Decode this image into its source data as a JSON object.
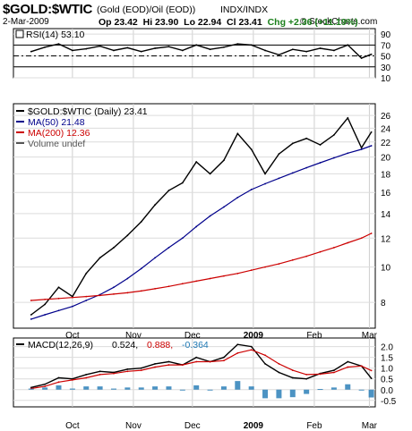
{
  "header": {
    "symbol": "$GOLD:$WTIC",
    "description": "(Gold (EOD)/Oil (EOD))",
    "exchange": "INDX/INDX",
    "watermark": "© StockCharts.com",
    "date": "2-Mar-2009",
    "open": "Op 23.42",
    "high": "Hi 23.90",
    "low": "Lo 22.94",
    "close": "Cl 23.41",
    "change": "Chg +2.36 (+11.19%)",
    "change_color": "#1a7f1a"
  },
  "chart_data": [
    {
      "type": "line",
      "panel": "rsi",
      "legend": [
        "RSI(14) 53.10"
      ],
      "ylim": [
        10,
        100
      ],
      "yticks": [
        10,
        30,
        50,
        70,
        90
      ],
      "reference_lines": [
        30,
        50,
        70
      ],
      "x": [
        "2008-09-10",
        "2008-09-17",
        "2008-09-24",
        "2008-10-01",
        "2008-10-08",
        "2008-10-15",
        "2008-10-22",
        "2008-10-29",
        "2008-11-05",
        "2008-11-12",
        "2008-11-19",
        "2008-11-26",
        "2008-12-03",
        "2008-12-10",
        "2008-12-17",
        "2008-12-24",
        "2008-12-31",
        "2009-01-07",
        "2009-01-14",
        "2009-01-21",
        "2009-01-28",
        "2009-02-04",
        "2009-02-11",
        "2009-02-18",
        "2009-02-25",
        "2009-03-02"
      ],
      "series": [
        {
          "name": "RSI(14) 53.10",
          "color": "#000000",
          "values": [
            58,
            66,
            72,
            60,
            63,
            68,
            60,
            65,
            58,
            64,
            67,
            60,
            70,
            62,
            66,
            72,
            70,
            60,
            52,
            62,
            58,
            64,
            60,
            70,
            46,
            53
          ]
        }
      ]
    },
    {
      "type": "line",
      "panel": "price",
      "scale": "log",
      "legend": [
        "$GOLD:$WTIC (Daily) 23.41",
        "MA(50) 21.48",
        "MA(200) 12.36",
        "Volume undef"
      ],
      "ylim": [
        6.8,
        28
      ],
      "yticks": [
        8,
        10,
        12,
        14,
        16,
        18,
        20,
        22,
        24,
        26
      ],
      "x": [
        "2008-09-10",
        "2008-09-17",
        "2008-09-24",
        "2008-10-01",
        "2008-10-08",
        "2008-10-15",
        "2008-10-22",
        "2008-10-29",
        "2008-11-05",
        "2008-11-12",
        "2008-11-19",
        "2008-11-26",
        "2008-12-03",
        "2008-12-10",
        "2008-12-17",
        "2008-12-24",
        "2008-12-31",
        "2009-01-07",
        "2009-01-14",
        "2009-01-21",
        "2009-01-28",
        "2009-02-04",
        "2009-02-11",
        "2009-02-18",
        "2009-02-25",
        "2009-03-02"
      ],
      "series": [
        {
          "name": "$GOLD:$WTIC (Daily) 23.41",
          "color": "#000000",
          "values": [
            7.4,
            7.9,
            8.8,
            8.3,
            9.6,
            10.6,
            11.3,
            12.2,
            13.3,
            14.8,
            16.2,
            17.0,
            19.4,
            18.0,
            19.6,
            23.2,
            21.0,
            18.0,
            20.4,
            21.8,
            22.5,
            21.6,
            23.0,
            25.6,
            21.2,
            23.41
          ]
        },
        {
          "name": "MA(50) 21.48",
          "color": "#00008b",
          "values": [
            7.2,
            7.4,
            7.6,
            7.8,
            8.1,
            8.4,
            8.8,
            9.3,
            9.9,
            10.6,
            11.3,
            12.0,
            12.9,
            13.8,
            14.6,
            15.5,
            16.3,
            16.9,
            17.5,
            18.1,
            18.7,
            19.3,
            19.9,
            20.5,
            21.0,
            21.48
          ]
        },
        {
          "name": "MA(200) 12.36",
          "color": "#cc0000",
          "values": [
            8.1,
            8.15,
            8.2,
            8.25,
            8.3,
            8.36,
            8.43,
            8.5,
            8.6,
            8.72,
            8.85,
            9.0,
            9.15,
            9.3,
            9.45,
            9.6,
            9.8,
            10.0,
            10.2,
            10.45,
            10.7,
            11.0,
            11.3,
            11.65,
            12.0,
            12.36
          ]
        }
      ]
    },
    {
      "type": "line",
      "panel": "macd",
      "legend": [
        "MACD(12,26,9)",
        "0.524,",
        "0.888,",
        "-0.364"
      ],
      "legend_colors": [
        "#000000",
        "#000000",
        "#cc0000",
        "#1f78b4"
      ],
      "ylim": [
        -0.8,
        2.4
      ],
      "yticks": [
        -0.5,
        0.0,
        0.5,
        1.0,
        1.5,
        2.0
      ],
      "x": [
        "2008-09-10",
        "2008-09-17",
        "2008-09-24",
        "2008-10-01",
        "2008-10-08",
        "2008-10-15",
        "2008-10-22",
        "2008-10-29",
        "2008-11-05",
        "2008-11-12",
        "2008-11-19",
        "2008-11-26",
        "2008-12-03",
        "2008-12-10",
        "2008-12-17",
        "2008-12-24",
        "2008-12-31",
        "2009-01-07",
        "2009-01-14",
        "2009-01-21",
        "2009-01-28",
        "2009-02-04",
        "2009-02-11",
        "2009-02-18",
        "2009-02-25",
        "2009-03-02"
      ],
      "series": [
        {
          "name": "MACD(12,26,9) 0.524",
          "color": "#000000",
          "values": [
            0.1,
            0.25,
            0.55,
            0.5,
            0.7,
            0.85,
            0.8,
            0.95,
            1.0,
            1.2,
            1.3,
            1.15,
            1.5,
            1.3,
            1.5,
            2.1,
            2.0,
            1.2,
            0.8,
            0.55,
            0.5,
            0.75,
            0.9,
            1.3,
            1.1,
            0.524
          ]
        },
        {
          "name": "0.888",
          "color": "#cc0000",
          "values": [
            0.05,
            0.15,
            0.35,
            0.45,
            0.55,
            0.7,
            0.75,
            0.85,
            0.9,
            1.05,
            1.15,
            1.15,
            1.3,
            1.3,
            1.35,
            1.7,
            1.85,
            1.6,
            1.2,
            0.9,
            0.7,
            0.72,
            0.8,
            1.05,
            1.1,
            0.888
          ]
        },
        {
          "name": "-0.364",
          "color": "#1f78b4",
          "type": "bar",
          "values": [
            0.05,
            0.1,
            0.2,
            0.05,
            0.15,
            0.15,
            0.05,
            0.1,
            0.1,
            0.15,
            0.15,
            0.0,
            0.2,
            0.0,
            0.15,
            0.4,
            0.15,
            -0.4,
            -0.4,
            -0.35,
            -0.2,
            0.03,
            0.1,
            0.25,
            0.0,
            -0.364
          ]
        }
      ]
    }
  ],
  "x_axis_labels": [
    "Oct",
    "Nov",
    "Dec",
    "2009",
    "Feb",
    "Mar"
  ]
}
